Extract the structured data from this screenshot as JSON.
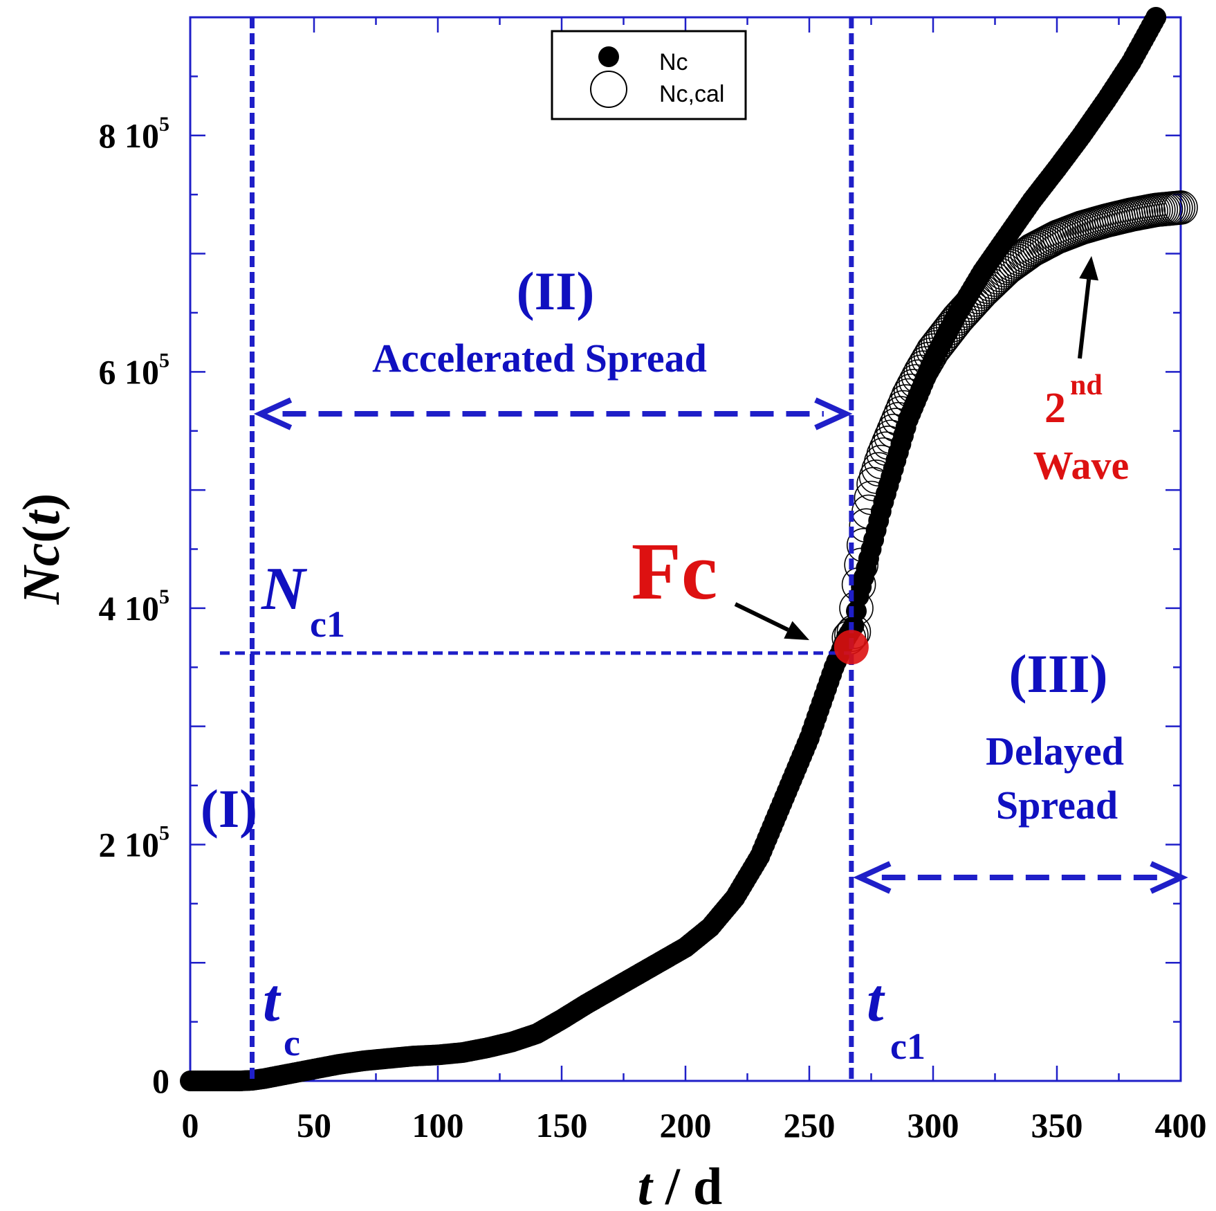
{
  "chart_data": {
    "type": "scatter",
    "title": "",
    "xlabel": {
      "var": "t",
      "rest": " / d"
    },
    "ylabel": {
      "N": "N",
      "c": "c",
      "open": "(",
      "t": "t",
      "close": ")"
    },
    "xlim": [
      0,
      400
    ],
    "ylim": [
      0,
      900000
    ],
    "x_ticks": [
      0,
      50,
      100,
      150,
      200,
      250,
      300,
      350,
      400
    ],
    "x_tick_labels": [
      "0",
      "50",
      "100",
      "150",
      "200",
      "250",
      "300",
      "350",
      "400"
    ],
    "y_ticks": [
      0,
      200000,
      400000,
      600000,
      800000
    ],
    "y_tick_labels": [
      {
        "mant": "0",
        "exp": ""
      },
      {
        "mant": "2 10",
        "exp": "5"
      },
      {
        "mant": "4 10",
        "exp": "5"
      },
      {
        "mant": "6 10",
        "exp": "5"
      },
      {
        "mant": "8 10",
        "exp": "5"
      }
    ],
    "legend": {
      "placement": "top-center",
      "entries": [
        {
          "label": "Nc",
          "marker": "filled-circle"
        },
        {
          "label": "Nc,cal",
          "marker": "open-circle"
        }
      ]
    },
    "series": [
      {
        "name": "Nc",
        "marker": "filled-circle",
        "color": "#000000",
        "x": [
          0,
          10,
          20,
          25,
          30,
          40,
          50,
          60,
          70,
          80,
          90,
          100,
          110,
          120,
          130,
          140,
          150,
          160,
          170,
          180,
          190,
          200,
          210,
          220,
          230,
          240,
          250,
          255,
          260,
          265,
          268,
          270,
          275,
          280,
          290,
          300,
          310,
          320,
          330,
          340,
          350,
          360,
          370,
          380,
          390
        ],
        "y": [
          0,
          0,
          0,
          500,
          2000,
          6000,
          10000,
          14000,
          17000,
          19000,
          21000,
          22000,
          24000,
          28000,
          33000,
          40000,
          52000,
          65000,
          77000,
          89000,
          101000,
          113000,
          130000,
          155000,
          190000,
          240000,
          290000,
          320000,
          350000,
          375000,
          385000,
          410000,
          450000,
          490000,
          560000,
          610000,
          650000,
          685000,
          715000,
          745000,
          772000,
          800000,
          830000,
          862000,
          900000
        ]
      },
      {
        "name": "Nc,cal",
        "marker": "open-circle",
        "color": "#000000",
        "x": [
          266,
          268,
          270,
          273,
          276,
          280,
          285,
          290,
          295,
          300,
          310,
          320,
          330,
          340,
          350,
          360,
          370,
          380,
          390,
          400
        ],
        "y": [
          375000,
          380000,
          420000,
          470000,
          505000,
          530000,
          555000,
          580000,
          600000,
          618000,
          645000,
          668000,
          688000,
          703000,
          714000,
          722000,
          728000,
          733000,
          737000,
          739000
        ]
      }
    ],
    "critical_lines": {
      "tc": 25,
      "tc1": 267,
      "Nc1": 362000
    },
    "annotations": {
      "tc_label": {
        "main": "t",
        "sub": "c"
      },
      "tc1_label": {
        "main": "t",
        "sub": "c1"
      },
      "nc1_label": {
        "main": "N",
        "sub": "c1"
      },
      "region_1": "(I)",
      "region_2": "(II)",
      "region_2_desc": "Accelerated Spread",
      "region_3": "(III)",
      "region_3_desc_line1": "Delayed",
      "region_3_desc_line2": "Spread",
      "fc_label": "Fc",
      "fc_point": {
        "x": 267,
        "y": 367000
      },
      "wave_label": {
        "ord": "2",
        "sup": "nd",
        "line2": "Wave"
      }
    },
    "colors": {
      "axis": "#1f1fc8",
      "annotation": "#1010c0",
      "highlight": "#dd1111",
      "data": "#000000"
    },
    "grid": false
  }
}
